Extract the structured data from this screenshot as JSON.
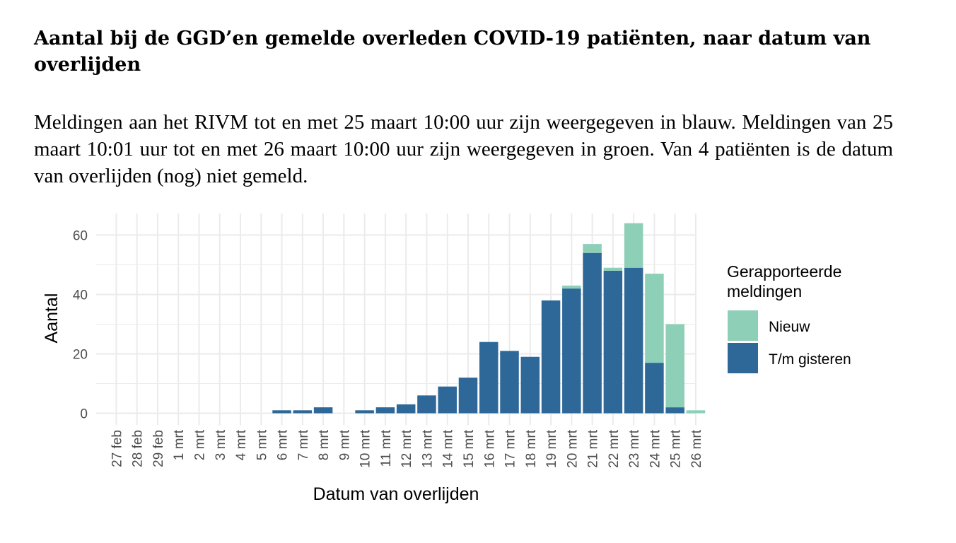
{
  "page": {
    "title": "Aantal bij de GGD’en gemelde overleden COVID-19 patiënten, naar datum van overlijden",
    "subtitle": "Meldingen aan het RIVM tot en met 25 maart 10:00 uur zijn weergegeven in blauw. Meldingen van 25 maart 10:01 uur tot en met 26 maart 10:00 uur zijn weergegeven in groen. Van 4 patiënten is de datum van overlijden (nog) niet gemeld."
  },
  "colors": {
    "nieuw": "#8ecfb8",
    "gisteren": "#2e6898",
    "grid": "#ebebeb",
    "tick_text": "#4d4d4d"
  },
  "chart_data": {
    "type": "bar",
    "stacked": true,
    "title": "Aantal bij de GGD’en gemelde overleden COVID-19 patiënten, naar datum van overlijden",
    "xlabel": "Datum van overlijden",
    "ylabel": "Aantal",
    "ylim": [
      0,
      67
    ],
    "yticks": [
      0,
      20,
      40,
      60
    ],
    "grid": true,
    "legend": {
      "title": "Gerapporteerde meldingen",
      "title_lines": [
        "Gerapporteerde",
        "meldingen"
      ],
      "position": "right",
      "entries": [
        "Nieuw",
        "T/m gisteren"
      ]
    },
    "categories": [
      "27 feb",
      "28 feb",
      "29 feb",
      "1 mrt",
      "2 mrt",
      "3 mrt",
      "4 mrt",
      "5 mrt",
      "6 mrt",
      "7 mrt",
      "8 mrt",
      "9 mrt",
      "10 mrt",
      "11 mrt",
      "12 mrt",
      "13 mrt",
      "14 mrt",
      "15 mrt",
      "16 mrt",
      "17 mrt",
      "18 mrt",
      "19 mrt",
      "20 mrt",
      "21 mrt",
      "22 mrt",
      "23 mrt",
      "24 mrt",
      "25 mrt",
      "26 mrt"
    ],
    "series": [
      {
        "name": "T/m gisteren",
        "values": [
          0,
          0,
          0,
          0,
          0,
          0,
          0,
          0,
          1,
          1,
          2,
          0,
          1,
          2,
          3,
          6,
          9,
          12,
          24,
          21,
          19,
          38,
          42,
          54,
          48,
          49,
          17,
          2,
          0
        ]
      },
      {
        "name": "Nieuw",
        "values": [
          0,
          0,
          0,
          0,
          0,
          0,
          0,
          0,
          0,
          0,
          0,
          0,
          0,
          0,
          0,
          0,
          0,
          0,
          0,
          0,
          0,
          0,
          1,
          3,
          1,
          15,
          30,
          28,
          1
        ]
      }
    ]
  }
}
